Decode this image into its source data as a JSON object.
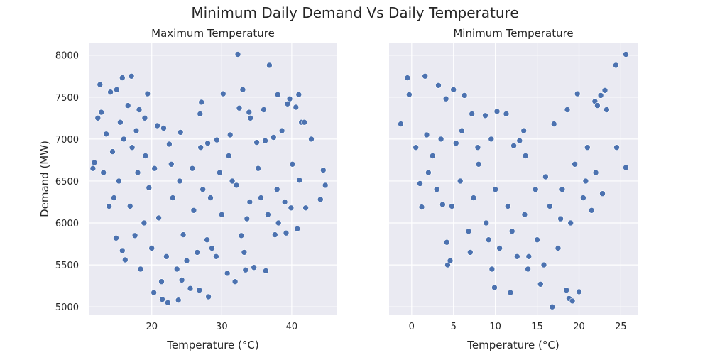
{
  "title": "Minimum Daily Demand Vs Daily Temperature",
  "colors": {
    "panel_bg": "#eaeaf2",
    "point": "#4c72b0",
    "grid": "#ffffff"
  },
  "chart_data": [
    {
      "type": "scatter",
      "title": "Maximum Temperature",
      "xlabel": "Temperature (°C)",
      "ylabel": "Demand (MW)",
      "xlim": [
        11,
        46.5
      ],
      "ylim": [
        4900,
        8150
      ],
      "xticks": [
        20,
        30,
        40
      ],
      "yticks": [
        5000,
        5500,
        6000,
        6500,
        7000,
        7500,
        8000
      ],
      "grid": true,
      "points": [
        [
          32.3,
          8010
        ],
        [
          36.8,
          7880
        ],
        [
          12.6,
          7650
        ],
        [
          15.8,
          7730
        ],
        [
          17.1,
          7750
        ],
        [
          14.1,
          7560
        ],
        [
          15.0,
          7590
        ],
        [
          19.4,
          7540
        ],
        [
          30.2,
          7540
        ],
        [
          33.0,
          7590
        ],
        [
          38.0,
          7530
        ],
        [
          41.0,
          7530
        ],
        [
          39.7,
          7480
        ],
        [
          27.1,
          7440
        ],
        [
          26.9,
          7300
        ],
        [
          32.5,
          7370
        ],
        [
          34.1,
          7250
        ],
        [
          33.9,
          7320
        ],
        [
          36.0,
          7350
        ],
        [
          39.4,
          7420
        ],
        [
          40.6,
          7380
        ],
        [
          41.4,
          7200
        ],
        [
          41.8,
          7200
        ],
        [
          42.8,
          7000
        ],
        [
          38.6,
          7100
        ],
        [
          37.4,
          7020
        ],
        [
          36.2,
          6980
        ],
        [
          35.0,
          6960
        ],
        [
          31.2,
          7050
        ],
        [
          29.3,
          6990
        ],
        [
          28.0,
          6950
        ],
        [
          24.1,
          7080
        ],
        [
          22.5,
          6940
        ],
        [
          21.7,
          7130
        ],
        [
          20.8,
          7160
        ],
        [
          12.3,
          7250
        ],
        [
          12.8,
          7320
        ],
        [
          13.5,
          7060
        ],
        [
          11.8,
          6720
        ],
        [
          11.6,
          6650
        ],
        [
          44.5,
          6630
        ],
        [
          44.8,
          6450
        ],
        [
          42.0,
          6180
        ],
        [
          44.1,
          6280
        ],
        [
          40.1,
          6700
        ],
        [
          41.1,
          6510
        ],
        [
          39.0,
          6250
        ],
        [
          39.9,
          6180
        ],
        [
          38.1,
          6000
        ],
        [
          40.8,
          5930
        ],
        [
          39.2,
          5880
        ],
        [
          37.6,
          5860
        ],
        [
          36.3,
          5430
        ],
        [
          34.6,
          5470
        ],
        [
          33.4,
          5440
        ],
        [
          28.1,
          5120
        ],
        [
          20.3,
          5170
        ],
        [
          21.5,
          5090
        ],
        [
          22.3,
          5050
        ],
        [
          23.8,
          5080
        ],
        [
          25.5,
          5220
        ],
        [
          26.8,
          5200
        ],
        [
          16.2,
          5560
        ],
        [
          15.8,
          5670
        ],
        [
          14.9,
          5820
        ],
        [
          18.9,
          6000
        ],
        [
          19.6,
          6420
        ],
        [
          21.0,
          6060
        ],
        [
          23.0,
          6300
        ],
        [
          24.5,
          5860
        ],
        [
          26.0,
          6150
        ],
        [
          27.3,
          6400
        ],
        [
          28.6,
          5700
        ],
        [
          30.0,
          6100
        ],
        [
          31.5,
          6500
        ],
        [
          32.8,
          5850
        ],
        [
          34.0,
          6250
        ],
        [
          35.2,
          6650
        ],
        [
          17.2,
          6900
        ],
        [
          18.0,
          6600
        ],
        [
          19.1,
          6800
        ],
        [
          16.0,
          7000
        ],
        [
          15.3,
          6500
        ],
        [
          14.6,
          6300
        ],
        [
          13.9,
          6200
        ],
        [
          22.1,
          5600
        ],
        [
          23.6,
          5450
        ],
        [
          25.0,
          5550
        ],
        [
          26.5,
          5650
        ],
        [
          27.9,
          5800
        ],
        [
          29.2,
          5600
        ],
        [
          30.8,
          5400
        ],
        [
          31.9,
          5300
        ],
        [
          33.2,
          5650
        ],
        [
          21.4,
          5300
        ],
        [
          24.3,
          5320
        ],
        [
          20.0,
          5700
        ],
        [
          18.4,
          5450
        ],
        [
          17.6,
          5850
        ],
        [
          16.9,
          6200
        ],
        [
          25.8,
          6650
        ],
        [
          27.0,
          6900
        ],
        [
          28.4,
          6300
        ],
        [
          29.7,
          6600
        ],
        [
          31.0,
          6800
        ],
        [
          32.1,
          6450
        ],
        [
          33.6,
          6050
        ],
        [
          35.6,
          6300
        ],
        [
          36.6,
          6100
        ],
        [
          37.9,
          6400
        ],
        [
          22.8,
          6700
        ],
        [
          24.0,
          6500
        ],
        [
          20.4,
          6650
        ],
        [
          19.0,
          7250
        ],
        [
          18.2,
          7350
        ],
        [
          17.8,
          7100
        ],
        [
          16.6,
          7400
        ],
        [
          15.5,
          7200
        ],
        [
          14.4,
          6850
        ],
        [
          13.1,
          6600
        ]
      ]
    },
    {
      "type": "scatter",
      "title": "Minimum Temperature",
      "xlabel": "Temperature (°C)",
      "ylabel": "",
      "xlim": [
        -2.7,
        27
      ],
      "ylim": [
        4900,
        8150
      ],
      "xticks": [
        0,
        5,
        10,
        15,
        20,
        25
      ],
      "yticks": [
        5000,
        5500,
        6000,
        6500,
        7000,
        7500,
        8000
      ],
      "grid": true,
      "points": [
        [
          25.6,
          8010
        ],
        [
          24.4,
          7880
        ],
        [
          -0.5,
          7730
        ],
        [
          1.6,
          7750
        ],
        [
          -0.3,
          7530
        ],
        [
          3.2,
          7640
        ],
        [
          5.0,
          7590
        ],
        [
          4.1,
          7480
        ],
        [
          6.3,
          7520
        ],
        [
          19.8,
          7540
        ],
        [
          23.1,
          7580
        ],
        [
          22.6,
          7520
        ],
        [
          21.9,
          7450
        ],
        [
          22.2,
          7400
        ],
        [
          23.3,
          7350
        ],
        [
          18.6,
          7350
        ],
        [
          17.0,
          7180
        ],
        [
          13.4,
          7100
        ],
        [
          12.9,
          6980
        ],
        [
          -1.3,
          7180
        ],
        [
          25.6,
          6660
        ],
        [
          24.5,
          6900
        ],
        [
          1.0,
          6470
        ],
        [
          1.2,
          6190
        ],
        [
          3.7,
          6220
        ],
        [
          4.2,
          5770
        ],
        [
          4.3,
          5500
        ],
        [
          4.6,
          5550
        ],
        [
          7.0,
          5650
        ],
        [
          9.6,
          5450
        ],
        [
          9.9,
          5230
        ],
        [
          11.8,
          5170
        ],
        [
          13.9,
          5450
        ],
        [
          15.4,
          5270
        ],
        [
          16.8,
          5000
        ],
        [
          18.8,
          5100
        ],
        [
          19.2,
          5070
        ],
        [
          20.0,
          5180
        ],
        [
          18.5,
          5200
        ],
        [
          7.2,
          7300
        ],
        [
          8.8,
          7280
        ],
        [
          10.2,
          7330
        ],
        [
          11.3,
          7300
        ],
        [
          12.2,
          6920
        ],
        [
          13.6,
          6800
        ],
        [
          5.8,
          6500
        ],
        [
          7.4,
          6300
        ],
        [
          8.9,
          6000
        ],
        [
          10.5,
          5700
        ],
        [
          12.0,
          5900
        ],
        [
          13.5,
          6100
        ],
        [
          15.0,
          5800
        ],
        [
          16.5,
          6200
        ],
        [
          18.0,
          6400
        ],
        [
          19.5,
          6700
        ],
        [
          21.0,
          6900
        ],
        [
          2.5,
          6800
        ],
        [
          3.5,
          7000
        ],
        [
          6.0,
          7100
        ],
        [
          8.0,
          6700
        ],
        [
          10.0,
          6400
        ],
        [
          11.5,
          6200
        ],
        [
          14.0,
          5600
        ],
        [
          15.8,
          5500
        ],
        [
          17.5,
          5700
        ],
        [
          19.0,
          6000
        ],
        [
          20.5,
          6300
        ],
        [
          22.0,
          6600
        ],
        [
          0.5,
          6900
        ],
        [
          2.0,
          6600
        ],
        [
          4.8,
          6200
        ],
        [
          6.8,
          5900
        ],
        [
          9.2,
          5800
        ],
        [
          12.6,
          5600
        ],
        [
          14.8,
          6400
        ],
        [
          16.0,
          6550
        ],
        [
          17.8,
          6050
        ],
        [
          20.8,
          6500
        ],
        [
          22.8,
          6350
        ],
        [
          21.5,
          6150
        ],
        [
          9.5,
          7000
        ],
        [
          7.9,
          6900
        ],
        [
          5.3,
          6950
        ],
        [
          3.0,
          6400
        ],
        [
          1.8,
          7050
        ]
      ]
    }
  ]
}
